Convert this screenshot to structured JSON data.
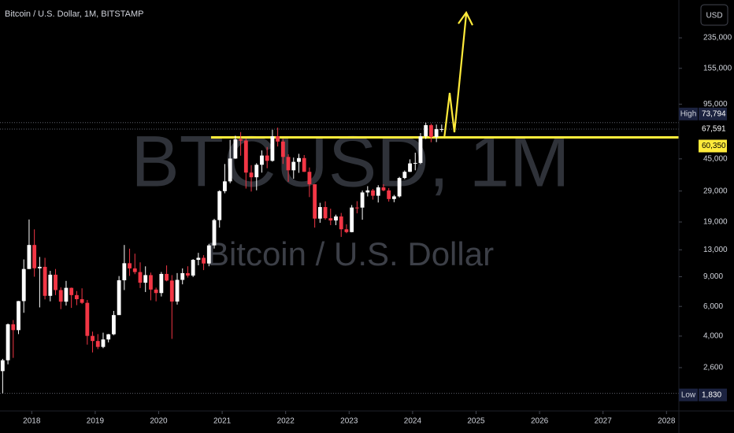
{
  "chart_data": {
    "type": "candlestick",
    "title": "Bitcoin / U.S. Dollar, 1M, BITSTAMP",
    "watermark": "BTCUSD, 1M",
    "watermark_subtitle": "Bitcoin / U.S. Dollar",
    "currency": "USD",
    "log_scale": true,
    "up_color": "#ffffff",
    "down_color": "#f23645",
    "line_color": "#ffeb3b",
    "x": [
      "2017-07",
      "2017-08",
      "2017-09",
      "2017-10",
      "2017-11",
      "2017-12",
      "2018-01",
      "2018-02",
      "2018-03",
      "2018-04",
      "2018-05",
      "2018-06",
      "2018-07",
      "2018-08",
      "2018-09",
      "2018-10",
      "2018-11",
      "2018-12",
      "2019-01",
      "2019-02",
      "2019-03",
      "2019-04",
      "2019-05",
      "2019-06",
      "2019-07",
      "2019-08",
      "2019-09",
      "2019-10",
      "2019-11",
      "2019-12",
      "2020-01",
      "2020-02",
      "2020-03",
      "2020-04",
      "2020-05",
      "2020-06",
      "2020-07",
      "2020-08",
      "2020-09",
      "2020-10",
      "2020-11",
      "2020-12",
      "2021-01",
      "2021-02",
      "2021-03",
      "2021-04",
      "2021-05",
      "2021-06",
      "2021-07",
      "2021-08",
      "2021-09",
      "2021-10",
      "2021-11",
      "2021-12",
      "2022-01",
      "2022-02",
      "2022-03",
      "2022-04",
      "2022-05",
      "2022-06",
      "2022-07",
      "2022-08",
      "2022-09",
      "2022-10",
      "2022-11",
      "2022-12",
      "2023-01",
      "2023-02",
      "2023-03",
      "2023-04",
      "2023-05",
      "2023-06",
      "2023-07",
      "2023-08",
      "2023-09",
      "2023-10",
      "2023-11",
      "2023-12",
      "2024-01",
      "2024-02",
      "2024-03",
      "2024-04",
      "2024-05",
      "2024-06"
    ],
    "open": [
      2480,
      2875,
      4700,
      4340,
      6450,
      10000,
      13880,
      10100,
      10300,
      6930,
      9250,
      7500,
      6400,
      7730,
      7000,
      6620,
      6300,
      4010,
      3740,
      3450,
      3820,
      4100,
      5330,
      8570,
      10820,
      10080,
      9590,
      8290,
      9200,
      7550,
      7200,
      9350,
      8540,
      6410,
      8620,
      9450,
      9140,
      11330,
      11650,
      10780,
      13800,
      19500,
      28950,
      33100,
      45200,
      58800,
      57800,
      37300,
      35000,
      41500,
      47100,
      43800,
      61300,
      57000,
      46200,
      38500,
      43200,
      45500,
      37700,
      31800,
      19900,
      23300,
      20000,
      19400,
      20500,
      17200,
      16550,
      23150,
      23130,
      28450,
      29250,
      27200,
      30480,
      29250,
      26000,
      26960,
      34650,
      37700,
      42300,
      42580,
      61200,
      71300,
      60700,
      67500
    ],
    "high": [
      2930,
      4750,
      4980,
      6470,
      11400,
      19666,
      17180,
      11790,
      11650,
      9750,
      10000,
      7780,
      8500,
      7760,
      7400,
      7680,
      6550,
      4250,
      4110,
      4190,
      4120,
      5640,
      9080,
      13880,
      13200,
      12330,
      10950,
      10370,
      9520,
      7750,
      9600,
      10500,
      9200,
      9460,
      10080,
      10380,
      11450,
      12470,
      12080,
      14100,
      19850,
      29300,
      41950,
      58350,
      61780,
      64900,
      59500,
      41300,
      42400,
      50500,
      52900,
      67000,
      69000,
      59100,
      47900,
      45800,
      48200,
      47400,
      40000,
      31900,
      24700,
      25200,
      22800,
      21000,
      21500,
      18400,
      23950,
      25250,
      29200,
      31000,
      29850,
      31400,
      31800,
      30200,
      27500,
      35200,
      38400,
      44700,
      48970,
      64000,
      73794,
      72800,
      71900,
      71900
    ],
    "low": [
      1830,
      2720,
      2970,
      4110,
      5500,
      10000,
      9000,
      5920,
      6600,
      6430,
      7000,
      5780,
      6070,
      5880,
      6100,
      6200,
      3560,
      3200,
      3350,
      3390,
      3670,
      4050,
      5350,
      7500,
      9100,
      9320,
      7710,
      7300,
      6520,
      6430,
      6870,
      8450,
      3850,
      6150,
      8110,
      8900,
      8960,
      10520,
      9850,
      10380,
      13220,
      17600,
      28130,
      32300,
      45000,
      47000,
      30000,
      28800,
      29300,
      37300,
      39600,
      43300,
      53300,
      42000,
      32900,
      34300,
      37200,
      37600,
      26700,
      17600,
      18800,
      19600,
      18200,
      18200,
      15500,
      16300,
      16500,
      21400,
      19600,
      26950,
      25800,
      24800,
      28900,
      25100,
      24900,
      26550,
      34100,
      37600,
      38500,
      41900,
      59000,
      56500,
      56600,
      65000
    ],
    "close": [
      2875,
      4700,
      4340,
      6450,
      10000,
      13880,
      10100,
      10300,
      6930,
      9250,
      7500,
      6400,
      7730,
      7000,
      6620,
      6300,
      4010,
      3740,
      3450,
      3820,
      4100,
      5330,
      8570,
      10820,
      10080,
      9590,
      8290,
      9200,
      7550,
      7200,
      9350,
      8540,
      6410,
      8620,
      9450,
      9140,
      11330,
      11650,
      10780,
      13800,
      19500,
      28950,
      33100,
      45200,
      58800,
      57800,
      37300,
      35000,
      41500,
      47100,
      43800,
      61300,
      57000,
      46200,
      38500,
      43200,
      45500,
      37700,
      31800,
      19900,
      23300,
      20000,
      19400,
      20500,
      17200,
      16550,
      23150,
      23130,
      28450,
      29250,
      27200,
      30480,
      29250,
      26000,
      26960,
      34650,
      37700,
      42300,
      42580,
      61200,
      71300,
      60700,
      67500,
      67591
    ],
    "xlim": [
      2017.5,
      2028.17
    ],
    "xticks": [
      2018,
      2019,
      2020,
      2021,
      2022,
      2023,
      2024,
      2025,
      2026,
      2027,
      2028
    ],
    "ylim": [
      1470,
      394000
    ],
    "yticks": [
      {
        "value": 2600,
        "label": "2,600"
      },
      {
        "value": 4000,
        "label": "4,000"
      },
      {
        "value": 6000,
        "label": "6,000"
      },
      {
        "value": 9000,
        "label": "9,000"
      },
      {
        "value": 13000,
        "label": "13,000"
      },
      {
        "value": 19000,
        "label": "19,000"
      },
      {
        "value": 29000,
        "label": "29,000"
      },
      {
        "value": 45000,
        "label": "45,000"
      },
      {
        "value": 95000,
        "label": "95,000"
      },
      {
        "value": 155000,
        "label": "155,000"
      },
      {
        "value": 235000,
        "label": "235,000"
      }
    ],
    "price_labels": [
      {
        "name": "High",
        "value": 73794,
        "label": "73,794"
      },
      {
        "name": "Low",
        "value": 1830,
        "label": "1,830"
      },
      {
        "value": 67591,
        "label": "67,591"
      },
      {
        "value": 60350,
        "label": "60,350"
      }
    ]
  }
}
